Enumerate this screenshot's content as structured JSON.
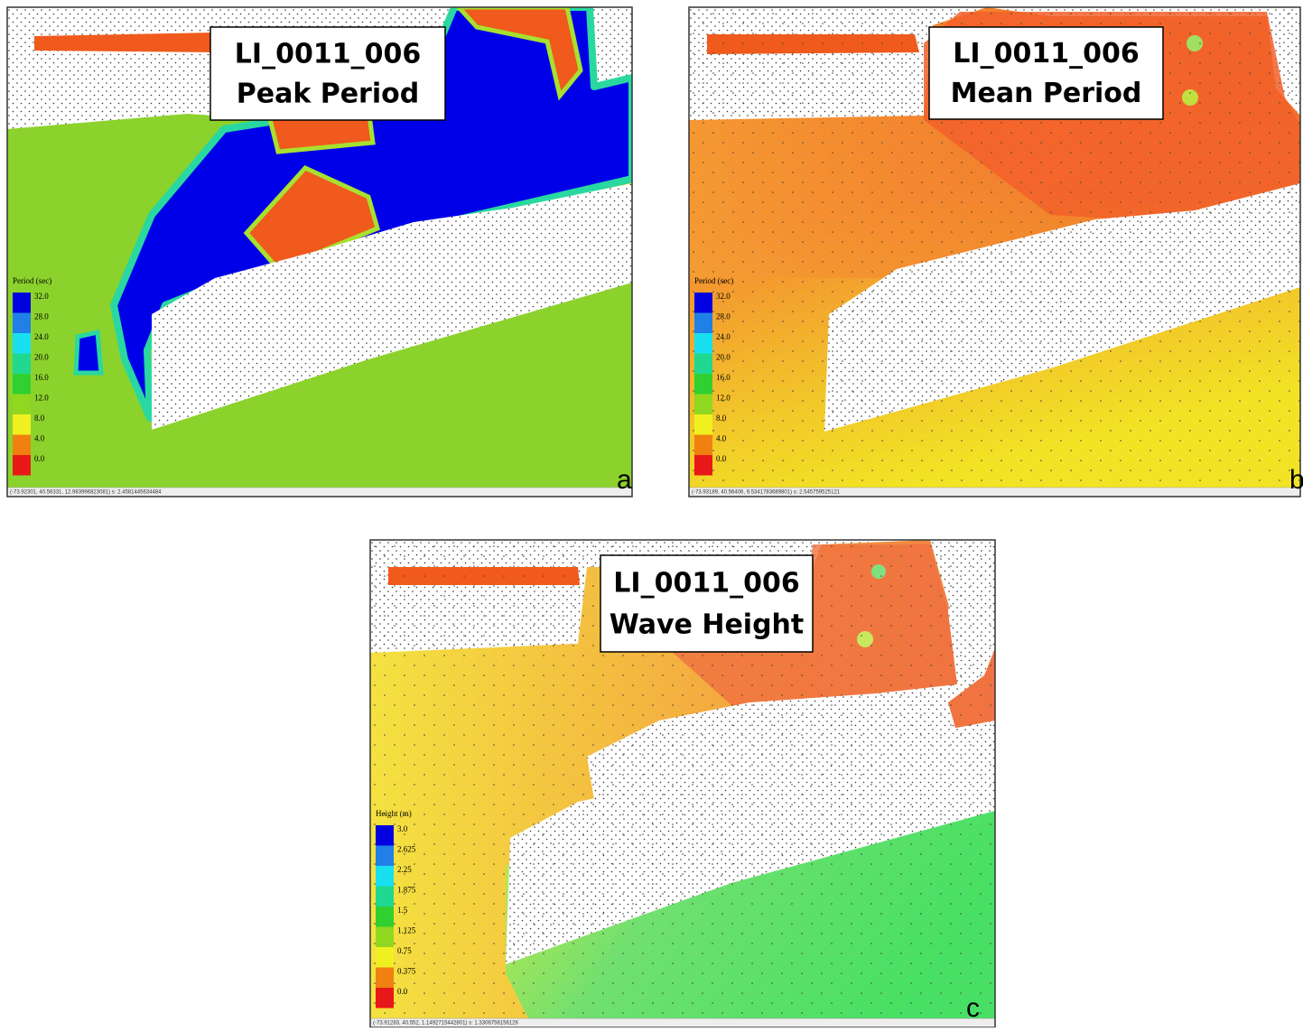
{
  "panels": [
    {
      "title": "LI_0011_006",
      "subtitle": "Peak Period",
      "legend": {
        "title": "Period (sec)",
        "labels": [
          "32.0",
          "28.0",
          "24.0",
          "20.0",
          "16.0",
          "12.0",
          "8.0",
          "4.0",
          "0.0"
        ]
      },
      "status": "(-73.92301, 40.56331, 12.983996823081) s: 2.4581445634484",
      "letter": "a"
    },
    {
      "title": "LI_0011_006",
      "subtitle": "Mean Period",
      "legend": {
        "title": "Period (sec)",
        "labels": [
          "32.0",
          "28.0",
          "24.0",
          "20.0",
          "16.0",
          "12.0",
          "8.0",
          "4.0",
          "0.0"
        ]
      },
      "status": "(-73.93189, 40.56406, 9.5341783689801) s: 2.545759525121",
      "letter": "b"
    },
    {
      "title": "LI_0011_006",
      "subtitle": "Wave Height",
      "legend": {
        "title": "Height (m)",
        "labels": [
          "3.0",
          "2.625",
          "2.25",
          "1.875",
          "1.5",
          "1.125",
          "0.75",
          "0.375",
          "0.0"
        ]
      },
      "status": "(-73.91283, 40.552, 1.1492715442801) s: 1.3306756156126",
      "letter": "c"
    }
  ]
}
